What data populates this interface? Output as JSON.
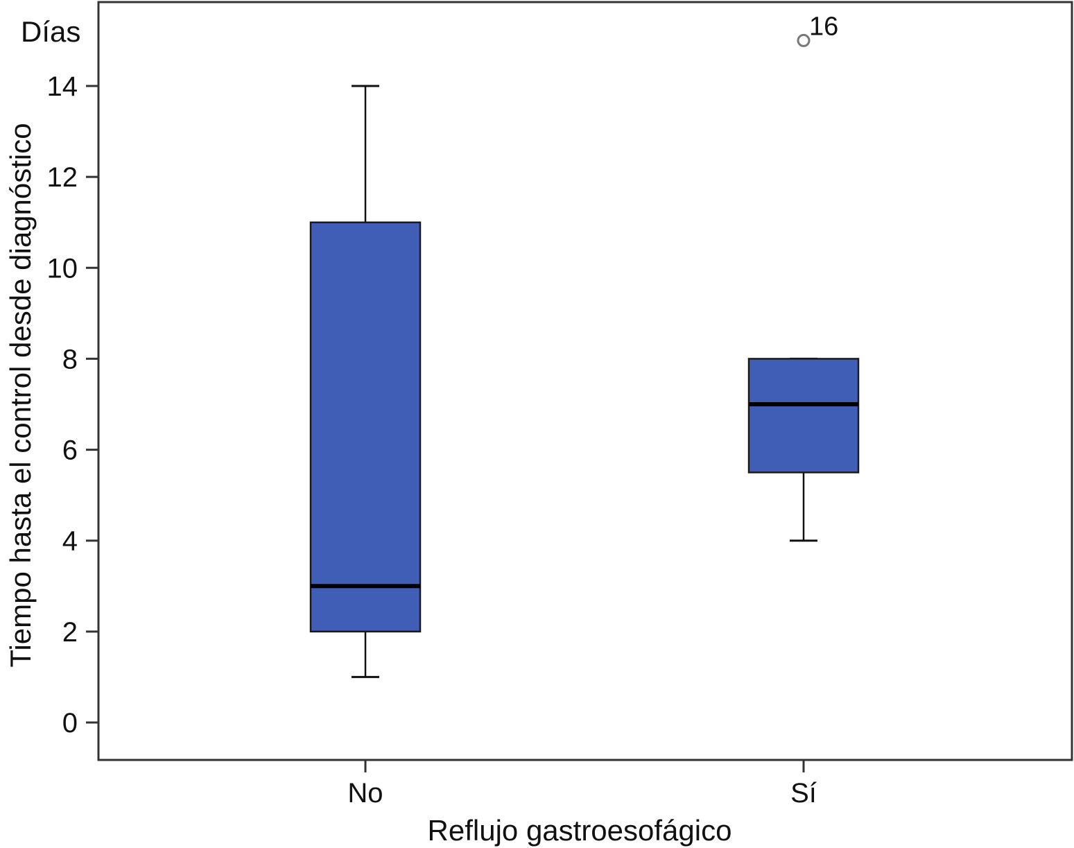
{
  "chart_data": {
    "type": "boxplot",
    "xlabel": "Reflujo gastroesofágico",
    "ylabel": "Tiempo hasta el control desde diagnóstico",
    "unit_label": "Días",
    "ylim": [
      -0.8,
      15.9
    ],
    "yticks": [
      0,
      2,
      4,
      6,
      8,
      10,
      12,
      14
    ],
    "grid": false,
    "categories": [
      "No",
      "Sí"
    ],
    "boxes": [
      {
        "category": "No",
        "whisker_low": 1,
        "q1": 2,
        "median": 3,
        "q3": 11,
        "whisker_high": 14,
        "outliers": []
      },
      {
        "category": "Sí",
        "whisker_low": 4,
        "q1": 5.5,
        "median": 7,
        "q3": 8,
        "whisker_high": 8,
        "outliers": [
          {
            "value": 15,
            "label": "16"
          }
        ]
      }
    ],
    "colors": {
      "box_fill": "#405EB6",
      "box_stroke": "#1a1a1a",
      "median": "#000000",
      "axis": "#333333"
    }
  }
}
